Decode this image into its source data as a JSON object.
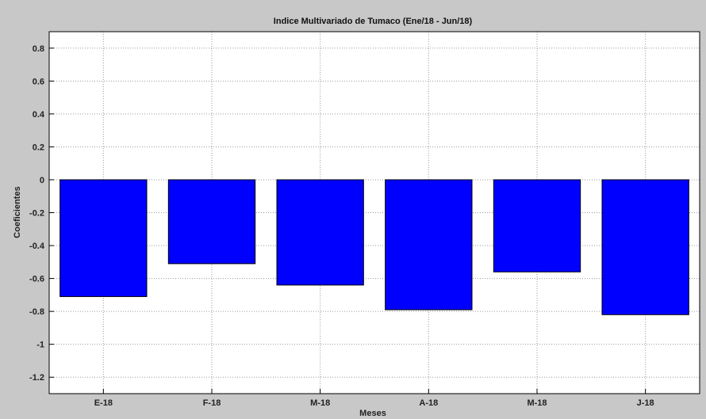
{
  "chart_data": {
    "type": "bar",
    "title": "Indice Multivariado de Tumaco (Ene/18 - Jun/18)",
    "xlabel": "Meses",
    "ylabel": "Coeficientes",
    "categories": [
      "E-18",
      "F-18",
      "M-18",
      "A-18",
      "M-18",
      "J-18"
    ],
    "values": [
      -0.71,
      -0.51,
      -0.64,
      -0.79,
      -0.56,
      -0.82
    ],
    "ylim": [
      -1.3,
      0.9
    ],
    "yticks": [
      0.8,
      0.6,
      0.4,
      0.2,
      0,
      -0.2,
      -0.4,
      -0.6,
      -0.8,
      -1,
      -1.2
    ],
    "ytick_labels": [
      "0.8",
      "0.6",
      "0.4",
      "0.2",
      "0",
      "-0.2",
      "-0.4",
      "-0.6",
      "-0.8",
      "-1",
      "-1.2"
    ],
    "grid": true,
    "bar_color": "#0000ff",
    "plot_background": "#ffffff",
    "figure_background": "#c8c8c8"
  }
}
